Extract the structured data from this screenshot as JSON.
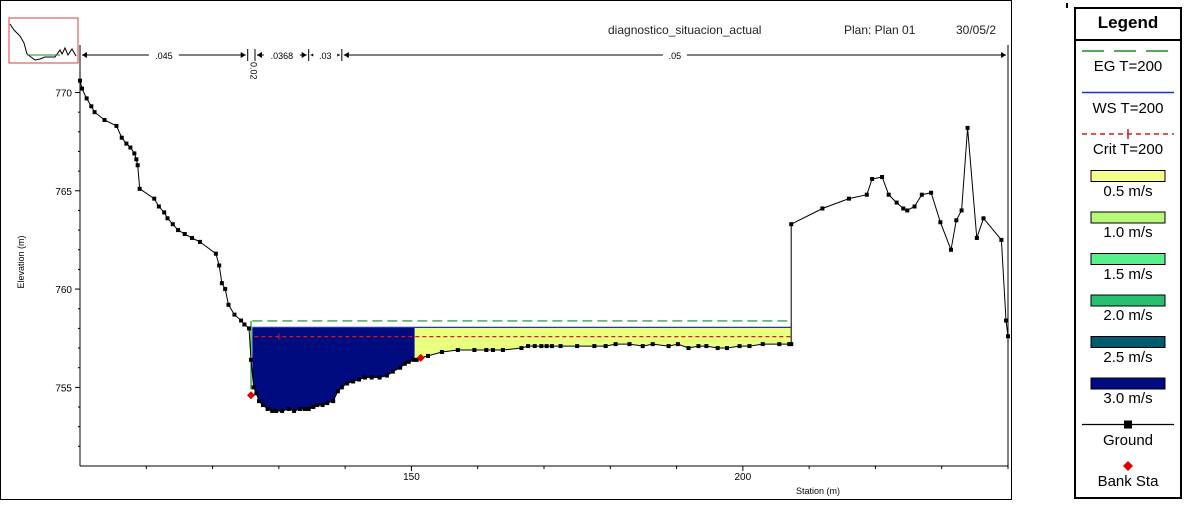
{
  "chart_data": {
    "type": "area",
    "header": {
      "plan_name": "diagnostico_situacion_actual",
      "plan": "Plan: Plan 01",
      "date": "30/05/2"
    },
    "xlabel": "Station (m)",
    "ylabel": "Elevation (m)",
    "xlim": [
      100,
      240
    ],
    "ylim": [
      751,
      771.5
    ],
    "x_ticks": [
      150,
      200
    ],
    "y_ticks": [
      755,
      760,
      765,
      770
    ],
    "grid": false,
    "mannings_n": [
      {
        "label": ".045",
        "from": 100,
        "to": 125.3
      },
      {
        "label": "0.02",
        "from": 125.3,
        "to": 126.4
      },
      {
        "label": ".0368",
        "from": 126.4,
        "to": 134.5
      },
      {
        "label": ".03",
        "from": 134.5,
        "to": 139.5
      },
      {
        "label": ".05",
        "from": 139.5,
        "to": 240
      }
    ],
    "series": [
      {
        "name": "EG T=200",
        "style": "dashed",
        "color": "#1a8a2a",
        "x": [
          126,
          207.3
        ],
        "y": [
          758.38,
          758.38
        ]
      },
      {
        "name": "WS T=200",
        "style": "solid",
        "color": "#2030d0",
        "x": [
          126,
          207.3
        ],
        "y": [
          758.05,
          758.05
        ]
      },
      {
        "name": "Crit T=200",
        "style": "dashed-plus",
        "color": "#d81818",
        "x": [
          126.3,
          207.3
        ],
        "y": [
          757.58,
          757.58
        ]
      },
      {
        "name": "Ground",
        "style": "line-squares",
        "color": "#000000",
        "x": [
          100,
          100.3,
          101,
          101.7,
          102.2,
          103.7,
          105.5,
          106.3,
          107,
          107.6,
          108.2,
          108.5,
          108.7,
          109,
          111.2,
          111.9,
          112.7,
          113.2,
          114,
          114.8,
          115.8,
          116.9,
          118.1,
          120.5,
          121,
          121.4,
          121.9,
          122.4,
          123.3,
          124.3,
          124.8,
          125.5,
          125.8,
          126.2,
          126.6,
          127,
          127.6,
          128.3,
          129,
          129.6,
          130.5,
          131.5,
          132.3,
          133.2,
          133.9,
          134.5,
          135.2,
          135.8,
          136.6,
          137.3,
          138.2,
          138.9,
          139.5,
          140.3,
          141.2,
          142.1,
          143,
          144,
          145.2,
          146.3,
          147.2,
          148.3,
          149,
          149.6,
          150.3,
          150.8,
          151.4,
          152.5,
          154.6,
          157,
          159.5,
          161.3,
          162.3,
          163.8,
          166.6,
          167.6,
          168.6,
          169.6,
          170.4,
          171.2,
          172.5,
          175,
          177.6,
          179.3,
          180.8,
          182.9,
          184.9,
          186.4,
          188.8,
          190.2,
          191.8,
          193.3,
          194.5,
          196.2,
          197.6,
          199.5,
          201,
          203,
          205.5,
          207,
          207.3,
          207.3,
          212,
          216,
          218.7,
          219.5,
          221,
          222,
          223.2,
          224.2,
          224.8,
          225.9,
          227,
          228.4,
          229.8,
          231.4,
          232.2,
          233,
          233.9,
          235.3,
          236.3,
          239,
          239.7,
          240
        ],
        "y": [
          770.6,
          770.2,
          769.7,
          769.3,
          769.0,
          768.6,
          768.3,
          767.7,
          767.4,
          767.2,
          766.9,
          766.6,
          766.3,
          765.1,
          764.6,
          764.2,
          763.9,
          763.6,
          763.3,
          763.0,
          762.8,
          762.6,
          762.4,
          761.8,
          761.2,
          760.3,
          760.0,
          759.2,
          758.7,
          758.4,
          758.2,
          758.0,
          756.4,
          755.0,
          754.7,
          754.3,
          754.1,
          753.9,
          753.8,
          753.8,
          753.8,
          753.9,
          753.8,
          753.9,
          753.9,
          753.9,
          754.0,
          754.1,
          754.1,
          754.2,
          754.3,
          754.8,
          755.0,
          755.2,
          755.3,
          755.4,
          755.5,
          755.5,
          755.5,
          755.6,
          755.8,
          756.0,
          756.2,
          756.3,
          756.4,
          756.4,
          756.5,
          756.6,
          756.8,
          756.9,
          756.9,
          756.9,
          756.9,
          756.9,
          757.0,
          757.1,
          757.1,
          757.1,
          757.1,
          757.1,
          757.1,
          757.1,
          757.1,
          757.1,
          757.2,
          757.2,
          757.1,
          757.2,
          757.1,
          757.2,
          757.0,
          757.1,
          757.1,
          757.0,
          757.0,
          757.1,
          757.1,
          757.2,
          757.2,
          757.2,
          757.2,
          763.3,
          764.1,
          764.6,
          764.8,
          765.6,
          765.7,
          764.8,
          764.4,
          764.1,
          764.0,
          764.2,
          764.8,
          764.9,
          763.4,
          762.0,
          763.5,
          764.0,
          768.2,
          762.6,
          763.6,
          762.5,
          758.4,
          757.6
        ]
      }
    ],
    "bank_stations": [
      {
        "x": 125.8,
        "y": 754.6
      },
      {
        "x": 151.4,
        "y": 756.5
      }
    ],
    "velocity_fill": {
      "water_surface": 758.05,
      "regions": [
        {
          "range": "3.0 m/s",
          "color": "#000b80",
          "x_from": 126,
          "x_to": 150.5
        },
        {
          "range": "0.5 m/s",
          "color": "#e8ff80",
          "x_from": 150.5,
          "x_to": 207.3
        }
      ]
    },
    "legend": [
      {
        "label": "EG T=200",
        "kind": "line-dashed",
        "color": "#1a8a2a"
      },
      {
        "label": "WS T=200",
        "kind": "line-solid",
        "color": "#2030d0"
      },
      {
        "label": "Crit T=200",
        "kind": "line-dashed-plus",
        "color": "#d81818"
      },
      {
        "label": "0.5 m/s",
        "kind": "swatch",
        "color": "#f2ff8a"
      },
      {
        "label": "1.0 m/s",
        "kind": "swatch",
        "color": "#b8f878"
      },
      {
        "label": "1.5 m/s",
        "kind": "swatch",
        "color": "#58f08a"
      },
      {
        "label": "2.0 m/s",
        "kind": "swatch",
        "color": "#28c06e"
      },
      {
        "label": "2.5 m/s",
        "kind": "swatch",
        "color": "#005a6e"
      },
      {
        "label": "3.0 m/s",
        "kind": "swatch",
        "color": "#000b80"
      },
      {
        "label": "Ground",
        "kind": "line-square",
        "color": "#000000"
      },
      {
        "label": "Bank Sta",
        "kind": "diamond",
        "color": "#e00000"
      }
    ],
    "legend_title": "Legend"
  }
}
